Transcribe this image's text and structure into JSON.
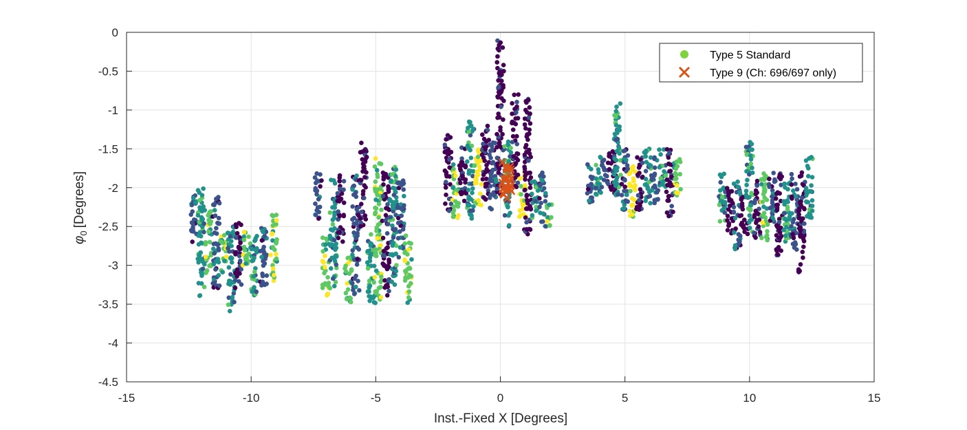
{
  "chart_data": {
    "type": "scatter",
    "xlabel": "Inst.-Fixed X [Degrees]",
    "ylabel": "[Degrees]",
    "ylabel_symbol": "φ",
    "ylabel_subscript": "0",
    "xlim": [
      -15,
      15
    ],
    "ylim": [
      -4.5,
      0
    ],
    "xticks": [
      -15,
      -10,
      -5,
      0,
      5,
      10,
      15
    ],
    "yticks": [
      0,
      -0.5,
      -1,
      -1.5,
      -2,
      -2.5,
      -3,
      -3.5,
      -4,
      -4.5
    ],
    "x_tick_labels": [
      "-15",
      "-10",
      "-5",
      "0",
      "5",
      "10",
      "15"
    ],
    "y_tick_labels": [
      "0",
      "-0.5",
      "-1",
      "-1.5",
      "-2",
      "-2.5",
      "-3",
      "-3.5",
      "-4",
      "-4.5"
    ],
    "grid": true,
    "legend_position": "top-right",
    "colormap": [
      "#440154",
      "#3b528b",
      "#21918c",
      "#5ec962",
      "#fde725"
    ],
    "series": [
      {
        "name": "Type 5 Standard",
        "marker": "circle",
        "legend_color": "#7ed23c",
        "note": "point colors vary along colormap",
        "groups": [
          {
            "x_range": [
              -12.5,
              -9.0
            ],
            "columns": [
              {
                "x": -12.3,
                "y_top": -2.1,
                "y_bottom": -2.7,
                "c": 1
              },
              {
                "x": -12.0,
                "y_top": -2.0,
                "y_bottom": -3.4,
                "c": 2
              },
              {
                "x": -11.7,
                "y_top": -2.3,
                "y_bottom": -3.1,
                "c": 3
              },
              {
                "x": -11.4,
                "y_top": -2.1,
                "y_bottom": -3.3,
                "c": 1
              },
              {
                "x": -11.1,
                "y_top": -2.6,
                "y_bottom": -3.1,
                "c": 3
              },
              {
                "x": -10.8,
                "y_top": -2.5,
                "y_bottom": -3.6,
                "c": 2
              },
              {
                "x": -10.5,
                "y_top": -2.4,
                "y_bottom": -3.3,
                "c": 0
              },
              {
                "x": -10.2,
                "y_top": -2.5,
                "y_bottom": -3.0,
                "c": 3
              },
              {
                "x": -9.9,
                "y_top": -2.6,
                "y_bottom": -3.4,
                "c": 2
              },
              {
                "x": -9.5,
                "y_top": -2.5,
                "y_bottom": -3.3,
                "c": 1
              },
              {
                "x": -9.1,
                "y_top": -2.3,
                "y_bottom": -3.2,
                "c": 3
              }
            ]
          },
          {
            "x_range": [
              -7.5,
              -3.5
            ],
            "columns": [
              {
                "x": -7.3,
                "y_top": -1.8,
                "y_bottom": -2.4,
                "c": 1
              },
              {
                "x": -7.0,
                "y_top": -2.6,
                "y_bottom": -3.4,
                "c": 3
              },
              {
                "x": -6.7,
                "y_top": -1.9,
                "y_bottom": -3.3,
                "c": 2
              },
              {
                "x": -6.4,
                "y_top": -1.8,
                "y_bottom": -2.7,
                "c": 0
              },
              {
                "x": -6.1,
                "y_top": -2.9,
                "y_bottom": -3.5,
                "c": 3
              },
              {
                "x": -5.8,
                "y_top": -1.8,
                "y_bottom": -3.4,
                "c": 1
              },
              {
                "x": -5.5,
                "y_top": -1.4,
                "y_bottom": -2.5,
                "c": 0
              },
              {
                "x": -5.2,
                "y_top": -2.6,
                "y_bottom": -3.5,
                "c": 2
              },
              {
                "x": -4.9,
                "y_top": -1.6,
                "y_bottom": -3.5,
                "c": 3
              },
              {
                "x": -4.6,
                "y_top": -1.8,
                "y_bottom": -3.4,
                "c": 0
              },
              {
                "x": -4.3,
                "y_top": -1.7,
                "y_bottom": -3.3,
                "c": 2
              },
              {
                "x": -4.0,
                "y_top": -1.9,
                "y_bottom": -2.9,
                "c": 1
              },
              {
                "x": -3.7,
                "y_top": -2.6,
                "y_bottom": -3.5,
                "c": 3
              }
            ]
          },
          {
            "x_range": [
              -2.2,
              2.2
            ],
            "columns": [
              {
                "x": -2.1,
                "y_top": -1.3,
                "y_bottom": -2.3,
                "c": 0
              },
              {
                "x": -1.8,
                "y_top": -1.7,
                "y_bottom": -2.4,
                "c": 3
              },
              {
                "x": -1.5,
                "y_top": -1.4,
                "y_bottom": -2.2,
                "c": 0
              },
              {
                "x": -1.2,
                "y_top": -1.1,
                "y_bottom": -2.4,
                "c": 2
              },
              {
                "x": -0.9,
                "y_top": -1.5,
                "y_bottom": -2.3,
                "c": 4
              },
              {
                "x": -0.6,
                "y_top": -1.2,
                "y_bottom": -2.2,
                "c": 0
              },
              {
                "x": -0.3,
                "y_top": -1.4,
                "y_bottom": -2.3,
                "c": 1
              },
              {
                "x": 0.0,
                "y_top": -0.1,
                "y_bottom": -2.1,
                "c": 0
              },
              {
                "x": 0.3,
                "y_top": -1.4,
                "y_bottom": -2.5,
                "c": 2
              },
              {
                "x": 0.6,
                "y_top": -0.8,
                "y_bottom": -2.0,
                "c": 0
              },
              {
                "x": 0.9,
                "y_top": -1.8,
                "y_bottom": -2.4,
                "c": 4
              },
              {
                "x": 1.1,
                "y_top": -0.8,
                "y_bottom": -2.6,
                "c": 0
              },
              {
                "x": 1.4,
                "y_top": -1.9,
                "y_bottom": -2.4,
                "c": 2
              },
              {
                "x": 1.7,
                "y_top": -1.8,
                "y_bottom": -2.5,
                "c": 1
              },
              {
                "x": 2.0,
                "y_top": -2.2,
                "y_bottom": -2.5,
                "c": 3
              }
            ]
          },
          {
            "x_range": [
              3.4,
              7.4
            ],
            "columns": [
              {
                "x": 3.6,
                "y_top": -1.7,
                "y_bottom": -2.2,
                "c": 1
              },
              {
                "x": 3.9,
                "y_top": -1.6,
                "y_bottom": -2.1,
                "c": 2
              },
              {
                "x": 4.2,
                "y_top": -1.6,
                "y_bottom": -2.0,
                "c": 1
              },
              {
                "x": 4.5,
                "y_top": -1.5,
                "y_bottom": -2.1,
                "c": 0
              },
              {
                "x": 4.7,
                "y_top": -0.9,
                "y_bottom": -2.1,
                "c": 2
              },
              {
                "x": 5.0,
                "y_top": -1.5,
                "y_bottom": -2.3,
                "c": 1
              },
              {
                "x": 5.3,
                "y_top": -1.7,
                "y_bottom": -2.4,
                "c": 4
              },
              {
                "x": 5.6,
                "y_top": -1.6,
                "y_bottom": -2.3,
                "c": 0
              },
              {
                "x": 5.9,
                "y_top": -1.5,
                "y_bottom": -2.2,
                "c": 2
              },
              {
                "x": 6.2,
                "y_top": -1.6,
                "y_bottom": -2.2,
                "c": 1
              },
              {
                "x": 6.5,
                "y_top": -1.5,
                "y_bottom": -2.0,
                "c": 2
              },
              {
                "x": 6.8,
                "y_top": -1.5,
                "y_bottom": -2.4,
                "c": 0
              },
              {
                "x": 7.1,
                "y_top": -1.6,
                "y_bottom": -2.1,
                "c": 3
              }
            ]
          },
          {
            "x_range": [
              8.8,
              12.4
            ],
            "columns": [
              {
                "x": 8.9,
                "y_top": -1.8,
                "y_bottom": -2.5,
                "c": 2
              },
              {
                "x": 9.2,
                "y_top": -2.0,
                "y_bottom": -2.6,
                "c": 0
              },
              {
                "x": 9.5,
                "y_top": -1.9,
                "y_bottom": -2.8,
                "c": 1
              },
              {
                "x": 9.8,
                "y_top": -2.1,
                "y_bottom": -2.6,
                "c": 0
              },
              {
                "x": 10.0,
                "y_top": -1.4,
                "y_bottom": -2.6,
                "c": 2
              },
              {
                "x": 10.3,
                "y_top": -1.9,
                "y_bottom": -2.7,
                "c": 0
              },
              {
                "x": 10.6,
                "y_top": -1.8,
                "y_bottom": -2.7,
                "c": 3
              },
              {
                "x": 10.9,
                "y_top": -1.8,
                "y_bottom": -2.5,
                "c": 1
              },
              {
                "x": 11.2,
                "y_top": -1.8,
                "y_bottom": -2.9,
                "c": 0
              },
              {
                "x": 11.5,
                "y_top": -1.9,
                "y_bottom": -2.7,
                "c": 2
              },
              {
                "x": 11.8,
                "y_top": -1.8,
                "y_bottom": -2.8,
                "c": 1
              },
              {
                "x": 12.1,
                "y_top": -1.8,
                "y_bottom": -3.1,
                "c": 0
              },
              {
                "x": 12.4,
                "y_top": -1.6,
                "y_bottom": -2.4,
                "c": 2
              }
            ]
          }
        ]
      },
      {
        "name": "Type 9 (Ch: 696/697 only)",
        "marker": "x",
        "color": "#d95319",
        "points_range": {
          "x": [
            0.05,
            0.45
          ],
          "y": [
            -1.65,
            -2.15
          ]
        }
      }
    ]
  }
}
